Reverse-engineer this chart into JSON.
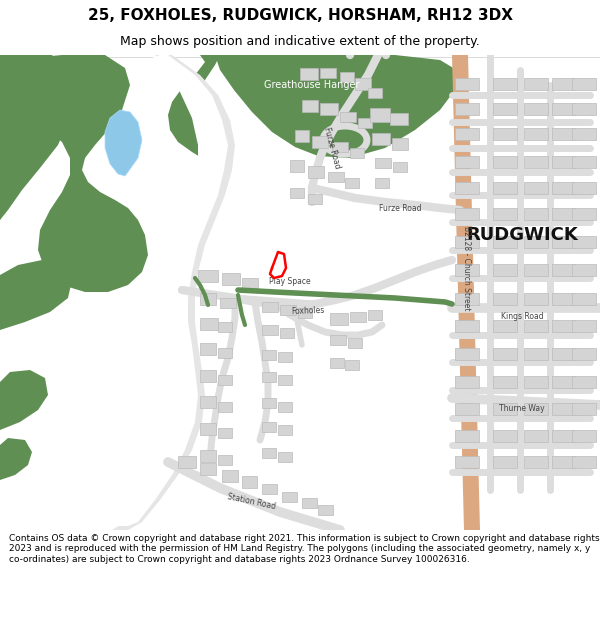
{
  "title": "25, FOXHOLES, RUDGWICK, HORSHAM, RH12 3DX",
  "subtitle": "Map shows position and indicative extent of the property.",
  "footer": "Contains OS data © Crown copyright and database right 2021. This information is subject to Crown copyright and database rights 2023 and is reproduced with the permission of HM Land Registry. The polygons (including the associated geometry, namely x, y co-ordinates) are subject to Crown copyright and database rights 2023 Ordnance Survey 100026316.",
  "bg_color": "#ffffff",
  "green_color": "#5f8f52",
  "road_orange": "#dba882",
  "building_color": "#d4d4d4",
  "building_edge": "#bbbbbb",
  "water_color": "#8ec8e8",
  "property_color": "#ff0000",
  "gray_road": "#cccccc",
  "title_fontsize": 11,
  "subtitle_fontsize": 9,
  "footer_fontsize": 6.5
}
